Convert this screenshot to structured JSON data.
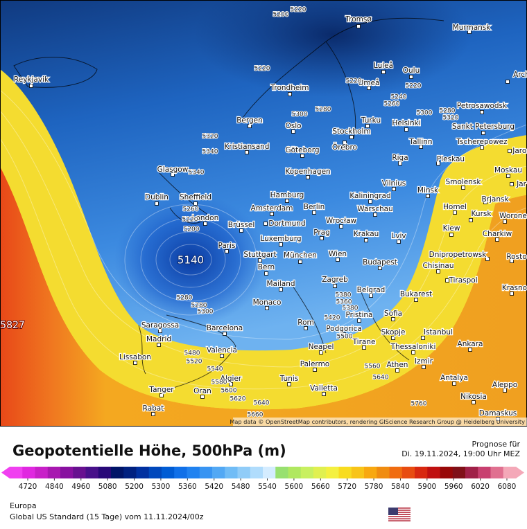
{
  "map": {
    "cities": [
      "Reykjavik",
      "Tromsø",
      "Murmansk",
      "Luleå",
      "Oulu",
      "Arch",
      "Umeå",
      "Trondheim",
      "Petrosawodsk",
      "Bergen",
      "Turku",
      "Helsinki",
      "Oslo",
      "Sankt Petersburg",
      "Stockholm",
      "Kristiansand",
      "Örebro",
      "Tallinn",
      "Tscherepowez",
      "Jaros",
      "Göteborg",
      "Riga",
      "Pleskau",
      "Glasgow",
      "Kopenhagen",
      "Moskau",
      "Vilnius",
      "Smolensk",
      "Minsk",
      "Jar",
      "Dublin",
      "Sheffield",
      "Hamburg",
      "Kaliningrad",
      "Brjansk",
      "Amsterdam",
      "Berlin",
      "Warschau",
      "Homel",
      "London",
      "Dortmund",
      "Wrocław",
      "Kursk",
      "Worone",
      "Brüssel",
      "Krakau",
      "Kiew",
      "Charkiw",
      "Paris",
      "Luxemburg",
      "Prag",
      "Lviv",
      "Stuttgart",
      "München",
      "Wien",
      "Dnipropetrowsk",
      "Rosto",
      "Bern",
      "Budapest",
      "Chisinau",
      "Mailand",
      "Zagreb",
      "Tiraspol",
      "Krasno",
      "Belgrad",
      "Bukarest",
      "Monaco",
      "Sofia",
      "Pristina",
      "Rom",
      "Podgorica",
      "Skopje",
      "Istanbul",
      "Saragossa",
      "Barcelona",
      "Madrid",
      "Tirane",
      "Thessaloniki",
      "Ankara",
      "Neapel",
      "Valencia",
      "Lissabon",
      "Palermo",
      "Athen",
      "Izmir",
      "Algier",
      "Tunis",
      "Antalya",
      "Aleppo",
      "Tanger",
      "Oran",
      "Valletta",
      "Nikosia",
      "Rabat",
      "Damaskus"
    ],
    "contour_labels": [
      5220,
      5200,
      5220,
      5220,
      5220,
      5240,
      5260,
      5280,
      5300,
      5300,
      5280,
      5320,
      5320,
      5340,
      5340,
      5260,
      5220,
      5200,
      5280,
      5280,
      5300,
      5380,
      5360,
      5380,
      5420,
      5500,
      5480,
      5520,
      5540,
      5580,
      5600,
      5620,
      5640,
      5660,
      5560,
      5640,
      5760
    ],
    "low_label": "5140",
    "high_label": "5827",
    "attribution": "Map data © OpenStreetMap contributors, rendering GIScience Research Group @ Heidelberg University"
  },
  "footer": {
    "title": "Geopotentielle Höhe, 500hPa (m)",
    "forecast_label": "Prognose für",
    "forecast_time": "Di. 19.11.2024, 19:00 Uhr MEZ",
    "colorbar": {
      "ticks": [
        4720,
        4840,
        4960,
        5080,
        5200,
        5300,
        5360,
        5420,
        5480,
        5540,
        5600,
        5660,
        5720,
        5780,
        5840,
        5900,
        5960,
        6020,
        6080
      ],
      "colors": [
        "#f040f0",
        "#e028e0",
        "#c820c8",
        "#a818b0",
        "#8810a0",
        "#681090",
        "#48108a",
        "#280878",
        "#001468",
        "#002080",
        "#0030a0",
        "#0048bc",
        "#005cd4",
        "#1070e8",
        "#2082f0",
        "#3894f2",
        "#52a8f4",
        "#70bcf6",
        "#90ccf8",
        "#b0dcfc",
        "#d4ecff",
        "#98e070",
        "#b0e860",
        "#c8f060",
        "#e0f050",
        "#f4f040",
        "#f8dc20",
        "#f8c418",
        "#f8a810",
        "#f08c10",
        "#f06c10",
        "#e84c10",
        "#d82810",
        "#c01010",
        "#980808",
        "#801018",
        "#a02048",
        "#c84070",
        "#e07090",
        "#f4a8b8"
      ]
    },
    "region": "Europa",
    "model": "Global US Standard (15 Tage)  vom  11.11.2024/00z"
  }
}
